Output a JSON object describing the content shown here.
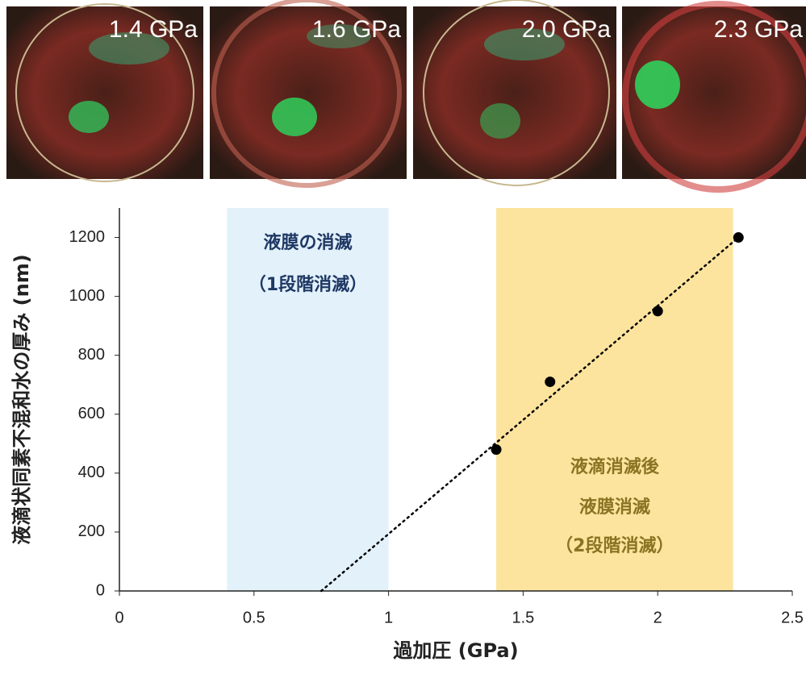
{
  "photo_labels": [
    "1.4 GPa",
    "1.6 GPa",
    "2.0 GPa",
    "2.3 GPa"
  ],
  "chart_data": {
    "type": "scatter",
    "xlabel": "過加圧 (GPa)",
    "ylabel": "液滴状同素不混和水の厚み (nm)",
    "xlim": [
      0,
      2.5
    ],
    "xticks": [
      0,
      0.5,
      1,
      1.5,
      2,
      2.5
    ],
    "ylim": [
      0,
      1300
    ],
    "yticks": [
      0,
      200,
      400,
      600,
      800,
      1000,
      1200
    ],
    "series": [
      {
        "x": [
          1.4,
          1.6,
          2.0,
          2.3
        ],
        "values": [
          480,
          710,
          950,
          1200
        ],
        "color": "#000000"
      }
    ],
    "trendline": {
      "x": [
        0.75,
        2.3
      ],
      "values": [
        0,
        1200
      ],
      "color": "#000000"
    },
    "bands": [
      {
        "xlim": [
          0.4,
          1.0
        ],
        "color": "#e2f1fa",
        "text_color": "#1f3864",
        "lines": [
          "液膜の消滅",
          "（1段階消滅）"
        ]
      },
      {
        "xlim": [
          1.4,
          2.28
        ],
        "color": "#fde49e",
        "text_color": "#8a7322",
        "lines": [
          "液滴消滅後",
          "液膜消滅",
          "（2段階消滅）"
        ]
      }
    ]
  }
}
